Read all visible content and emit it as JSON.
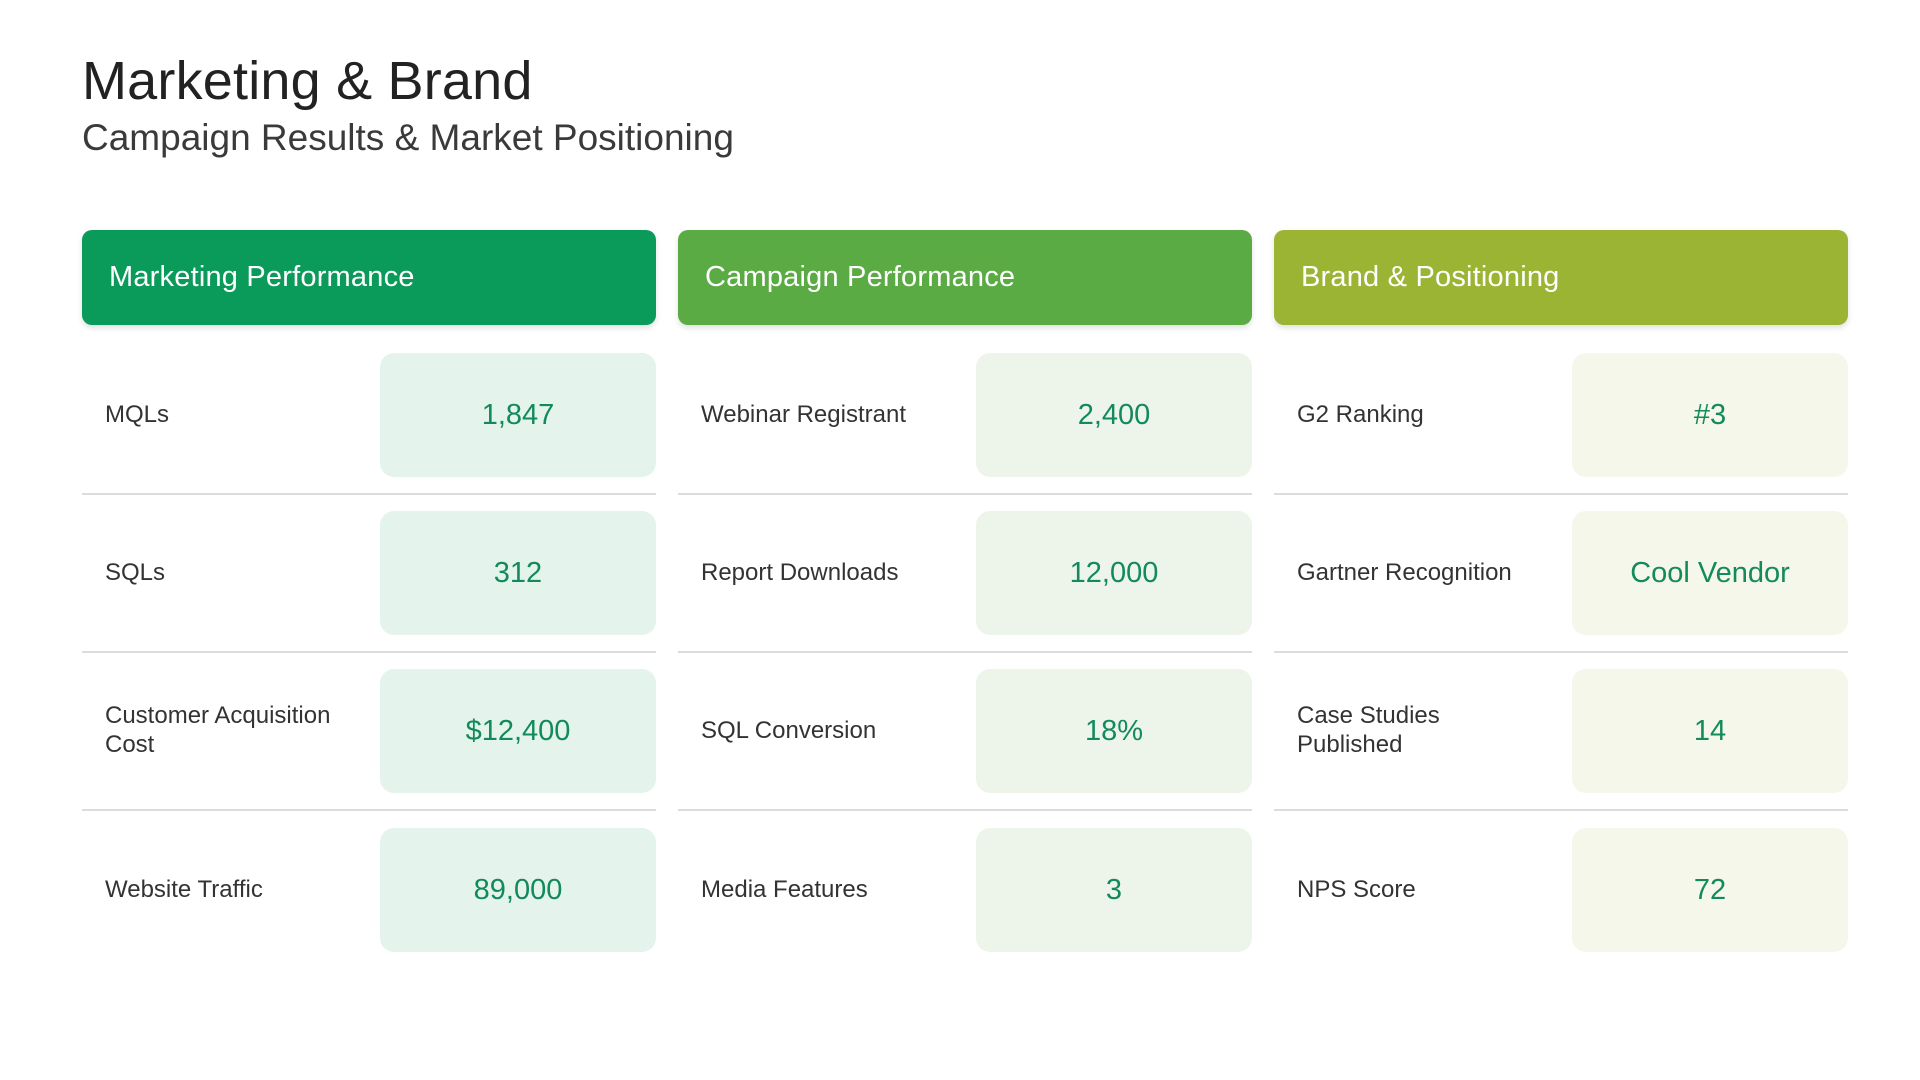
{
  "title": "Marketing & Brand",
  "subtitle": "Campaign Results & Market Positioning",
  "colors": {
    "marketing_header": "#0a9a5a",
    "campaign_header": "#5aab44",
    "brand_header": "#9cb434",
    "marketing_box": "#e4f4ec",
    "campaign_box": "#edf5ea",
    "brand_box": "#f4f7e9",
    "value_text": "#138a5b"
  },
  "columns": [
    {
      "header": "Marketing Performance",
      "rows": [
        {
          "label": "MQLs",
          "value": "1,847"
        },
        {
          "label": "SQLs",
          "value": "312"
        },
        {
          "label": "Customer Acquisition Cost",
          "value": "$12,400"
        },
        {
          "label": "Website Traffic",
          "value": "89,000"
        }
      ]
    },
    {
      "header": "Campaign Performance",
      "rows": [
        {
          "label": "Webinar Registrant",
          "value": "2,400"
        },
        {
          "label": "Report Downloads",
          "value": "12,000"
        },
        {
          "label": "SQL Conversion",
          "value": "18%"
        },
        {
          "label": "Media Features",
          "value": "3"
        }
      ]
    },
    {
      "header": "Brand & Positioning",
      "rows": [
        {
          "label": "G2 Ranking",
          "value": "#3"
        },
        {
          "label": "Gartner Recognition",
          "value": "Cool Vendor"
        },
        {
          "label": "Case Studies Published",
          "value": "14"
        },
        {
          "label": "NPS Score",
          "value": "72"
        }
      ]
    }
  ]
}
